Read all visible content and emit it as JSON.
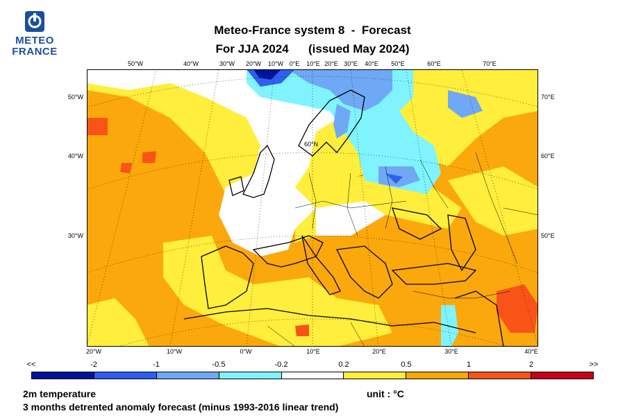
{
  "logo": {
    "line1": "METEO",
    "line2": "FRANCE"
  },
  "title": {
    "line1": "Meteo-France system 8  -  Forecast",
    "line2": "For JJA 2024      (issued May 2024)"
  },
  "map": {
    "inset_label": "60°N",
    "top_ticks": [
      "50°W",
      "40°W",
      "30°W",
      "20°W",
      "10°W",
      "0°E",
      "10°E",
      "20°E",
      "30°E",
      "40°E",
      "50°E",
      "60°E",
      "70°E"
    ],
    "bottom_ticks": [
      "20°W",
      "10°W",
      "0°W",
      "10°E",
      "20°E",
      "30°E",
      "40°E"
    ],
    "left_ticks": [
      "50°W",
      "40°W",
      "30°W"
    ],
    "right_ticks": [
      "70°E",
      "60°E",
      "50°E"
    ]
  },
  "legend": {
    "labels": [
      "<<",
      "-2",
      "-1",
      "-0.5",
      "-0.2",
      "0.2",
      "0.5",
      "1",
      "2",
      ">>"
    ],
    "colors": [
      "#00139c",
      "#2e5ff0",
      "#6fa8f5",
      "#7ff4ff",
      "#ffffff",
      "#ffee3c",
      "#fba80c",
      "#f95418",
      "#c8001a"
    ]
  },
  "footer": {
    "variable": "2m temperature",
    "unit": "unit : °C",
    "description": "3 months detrented anomaly forecast (minus 1993-2016 linear trend)"
  }
}
